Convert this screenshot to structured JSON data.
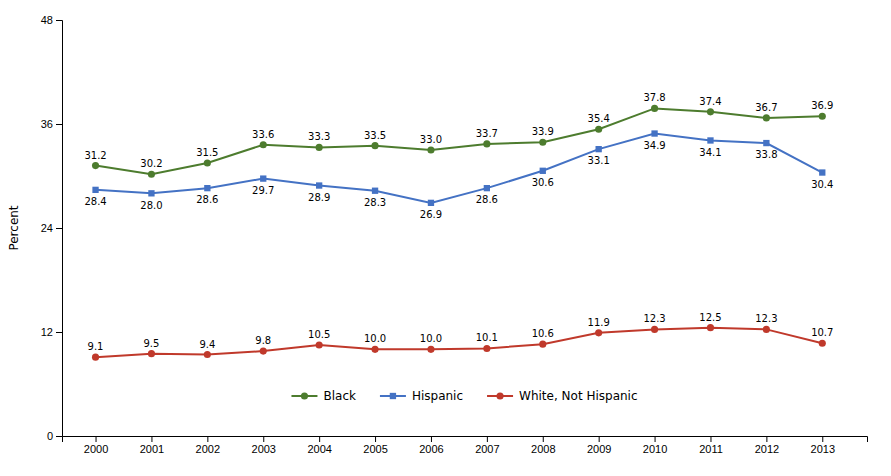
{
  "chart_data": {
    "type": "line",
    "x": [
      2000,
      2001,
      2002,
      2003,
      2004,
      2005,
      2006,
      2007,
      2008,
      2009,
      2010,
      2011,
      2012,
      2013
    ],
    "series": [
      {
        "name": "Black",
        "color": "#4d7c2e",
        "marker": "circle",
        "values": [
          31.2,
          30.2,
          31.5,
          33.6,
          33.3,
          33.5,
          33.0,
          33.7,
          33.9,
          35.4,
          37.8,
          37.4,
          36.7,
          36.9
        ],
        "value_labels": [
          "31.2",
          "30.2",
          "31.5",
          "33.6",
          "33.3",
          "33.5",
          "33.0",
          "33.7",
          "33.9",
          "35.4",
          "37.8",
          "37.4",
          "36.7",
          "36.9"
        ]
      },
      {
        "name": "Hispanic",
        "color": "#4472c4",
        "marker": "square",
        "values": [
          28.4,
          28.0,
          28.6,
          29.7,
          28.9,
          28.3,
          26.9,
          28.6,
          30.6,
          33.1,
          34.9,
          34.1,
          33.8,
          30.4
        ],
        "value_labels": [
          "28.4",
          "28.0",
          "28.6",
          "29.7",
          "28.9",
          "28.3",
          "26.9",
          "28.6",
          "30.6",
          "33.1",
          "34.9",
          "34.1",
          "33.8",
          "30.4"
        ]
      },
      {
        "name": "White, Not Hispanic",
        "color": "#c0392b",
        "marker": "circle",
        "values": [
          9.1,
          9.5,
          9.4,
          9.8,
          10.5,
          10.0,
          10.0,
          10.1,
          10.6,
          11.9,
          12.3,
          12.5,
          12.3,
          10.7
        ],
        "value_labels": [
          "9.1",
          "9.5",
          "9.4",
          "9.8",
          "10.5",
          "10.0",
          "10.0",
          "10.1",
          "10.6",
          "11.9",
          "12.3",
          "12.5",
          "12.3",
          "10.7"
        ]
      }
    ],
    "ylabel": "Percent",
    "xlim": [
      1999.4,
      2013.8
    ],
    "xticks": [
      2000,
      2001,
      2002,
      2003,
      2004,
      2005,
      2006,
      2007,
      2008,
      2009,
      2010,
      2011,
      2012,
      2013
    ],
    "ylim": [
      0,
      48
    ],
    "yticks": [
      0,
      12,
      24,
      36,
      48
    ],
    "grid": false,
    "legend": "bottom",
    "data_labels": true
  }
}
